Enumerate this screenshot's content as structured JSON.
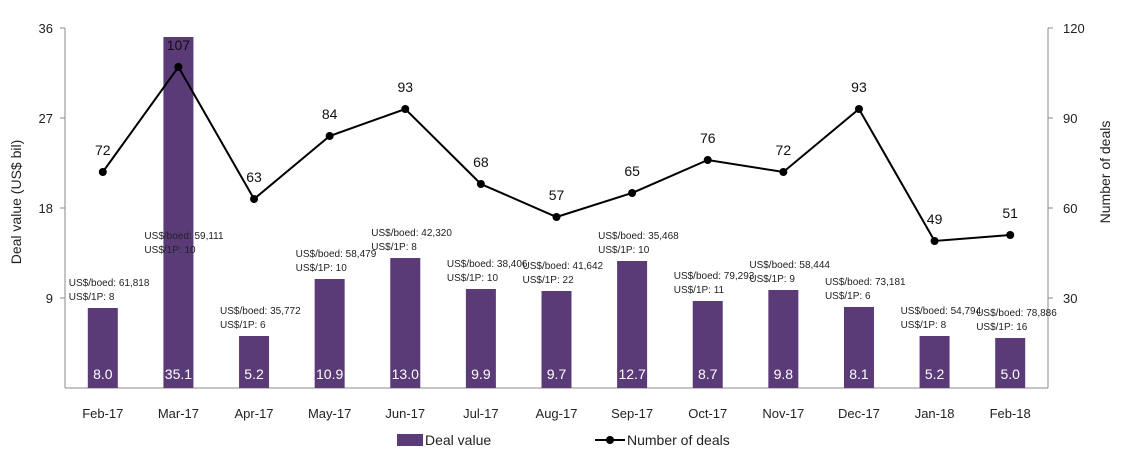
{
  "chart_data": {
    "type": "bar+line",
    "categories": [
      "Feb-17",
      "Mar-17",
      "Apr-17",
      "May-17",
      "Jun-17",
      "Jul-17",
      "Aug-17",
      "Sep-17",
      "Oct-17",
      "Nov-17",
      "Dec-17",
      "Jan-18",
      "Feb-18"
    ],
    "series": [
      {
        "name": "Deal value",
        "type": "bar",
        "axis": "left",
        "values": [
          8.0,
          35.1,
          5.2,
          10.9,
          13.0,
          9.9,
          9.7,
          12.7,
          8.7,
          9.8,
          8.1,
          5.2,
          5.0
        ],
        "labels": [
          "8.0",
          "35.1",
          "5.2",
          "10.9",
          "13.0",
          "9.9",
          "9.7",
          "12.7",
          "8.7",
          "9.8",
          "8.1",
          "5.2",
          "5.0"
        ],
        "color": "#5b3a78"
      },
      {
        "name": "Number of deals",
        "type": "line",
        "axis": "right",
        "values": [
          72,
          107,
          63,
          84,
          93,
          68,
          57,
          65,
          76,
          72,
          93,
          49,
          51
        ],
        "labels": [
          "72",
          "107",
          "63",
          "84",
          "93",
          "68",
          "57",
          "65",
          "76",
          "72",
          "93",
          "49",
          "51"
        ],
        "color": "#000000"
      }
    ],
    "annotations": [
      {
        "line1": "US$/boed: 61,818",
        "line2": "US$/1P: 8"
      },
      {
        "line1": "US$/boed: 59,111",
        "line2": "US$/1P: 10"
      },
      {
        "line1": "US$/boed: 35,772",
        "line2": "US$/1P: 6"
      },
      {
        "line1": "US$/boed: 58,479",
        "line2": "US$/1P: 10"
      },
      {
        "line1": "US$/boed: 42,320",
        "line2": "US$/1P: 8"
      },
      {
        "line1": "US$/boed: 38,406",
        "line2": "US$/1P: 10"
      },
      {
        "line1": "US$/boed: 41,642",
        "line2": "US$/1P: 22"
      },
      {
        "line1": "US$/boed: 35,468",
        "line2": "US$/1P: 10"
      },
      {
        "line1": "US$/boed: 79,293",
        "line2": "US$/1P: 11"
      },
      {
        "line1": "US$/boed: 58,444",
        "line2": "US$/1P: 9"
      },
      {
        "line1": "US$/boed: 73,181",
        "line2": "US$/1P: 6"
      },
      {
        "line1": "US$/boed: 54,794",
        "line2": "US$/1P: 8"
      },
      {
        "line1": "US$/boed: 78,886",
        "line2": "US$/1P: 16"
      }
    ],
    "ylabel_left": "Deal value (US$ bil)",
    "ylabel_right": "Number of deals",
    "ylim_left": [
      0,
      36
    ],
    "yticks_left": [
      "9",
      "18",
      "27",
      "36"
    ],
    "ylim_right": [
      0,
      120
    ],
    "yticks_right": [
      "30",
      "60",
      "90",
      "120"
    ],
    "legend": {
      "position": "bottom",
      "items": [
        "Deal value",
        "Number of deals"
      ]
    },
    "grid": false
  }
}
